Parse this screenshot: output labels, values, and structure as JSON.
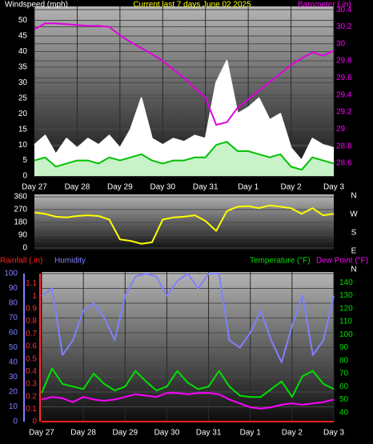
{
  "chart_data": [
    {
      "type": "line",
      "title": "Current last 7 days June 02 2025",
      "ylabel": "Windspeed (mph)",
      "y2label": "Barometer (.in)",
      "x": [
        0,
        0.25,
        0.5,
        0.75,
        1,
        1.25,
        1.5,
        1.75,
        2,
        2.25,
        2.5,
        2.75,
        3,
        3.25,
        3.5,
        3.75,
        4,
        4.25,
        4.5,
        4.75,
        5,
        5.25,
        5.5,
        5.75,
        6,
        6.25,
        6.5,
        6.75,
        7
      ],
      "xlim": [
        0,
        7
      ],
      "xticks": [
        {
          "value": 0,
          "label": "Day 27"
        },
        {
          "value": 1,
          "label": "Day 28"
        },
        {
          "value": 2,
          "label": "Day 29"
        },
        {
          "value": 3,
          "label": "Day 30"
        },
        {
          "value": 4,
          "label": "Day 31"
        },
        {
          "value": 5,
          "label": "Day 1"
        },
        {
          "value": 6,
          "label": "Day 2"
        },
        {
          "value": 7,
          "label": "Day 3"
        }
      ],
      "ylim": [
        0,
        54
      ],
      "yticks": [
        0,
        5,
        10,
        15,
        20,
        25,
        30,
        35,
        40,
        45,
        50
      ],
      "y2lim": [
        28.45,
        30.42
      ],
      "y2ticks": [
        28.6,
        28.8,
        29,
        29.2,
        29.4,
        29.6,
        29.8,
        30,
        30.2,
        30.4
      ],
      "grid": true,
      "series": [
        {
          "color": "#ffffff",
          "fill": "#ffffff",
          "values": [
            10,
            13,
            7,
            12,
            9,
            12,
            10,
            13,
            9,
            15,
            25,
            12,
            10,
            12,
            11,
            13,
            12,
            30,
            37,
            20,
            22,
            25,
            18,
            20,
            9,
            5,
            12,
            10,
            9
          ]
        },
        {
          "color": "#00c000",
          "fill": "#c8f2c8",
          "values": [
            5,
            6,
            3,
            4,
            5,
            5,
            4,
            6,
            5,
            6,
            7,
            5,
            4,
            5,
            5,
            6,
            6,
            10,
            11,
            8,
            8,
            7,
            6,
            7,
            3,
            2,
            6,
            5,
            4
          ]
        },
        {
          "color": "#e000e0",
          "axis": "y2",
          "values": [
            30.17,
            30.24,
            30.24,
            30.23,
            30.22,
            30.21,
            30.21,
            30.2,
            30.1,
            30.02,
            29.95,
            29.88,
            29.8,
            29.7,
            29.6,
            29.48,
            29.37,
            29.05,
            29.08,
            29.25,
            29.35,
            29.45,
            29.55,
            29.65,
            29.75,
            29.83,
            29.9,
            29.86,
            29.92
          ]
        }
      ]
    },
    {
      "type": "line",
      "x": [
        0,
        0.25,
        0.5,
        0.75,
        1,
        1.25,
        1.5,
        1.75,
        2,
        2.25,
        2.5,
        2.75,
        3,
        3.25,
        3.5,
        3.75,
        4,
        4.25,
        4.5,
        4.75,
        5,
        5.25,
        5.5,
        5.75,
        6,
        6.25,
        6.5,
        6.75,
        7
      ],
      "xlim": [
        0,
        7
      ],
      "ylim": [
        0,
        360
      ],
      "yticks": [
        0,
        90,
        180,
        270,
        360
      ],
      "y2lim": [
        0,
        360
      ],
      "y2ticks": [
        {
          "value": 360,
          "label": "N"
        },
        {
          "value": 270,
          "label": "W"
        },
        {
          "value": 180,
          "label": "S"
        },
        {
          "value": 90,
          "label": "E"
        },
        {
          "value": 0,
          "label": "N"
        }
      ],
      "grid": true,
      "series": [
        {
          "color": "#ffff00",
          "values": [
            250,
            240,
            220,
            215,
            225,
            230,
            225,
            200,
            60,
            50,
            30,
            40,
            200,
            215,
            220,
            230,
            190,
            120,
            260,
            290,
            295,
            280,
            300,
            290,
            280,
            240,
            280,
            230,
            240
          ]
        }
      ]
    },
    {
      "type": "line",
      "x": [
        0,
        0.25,
        0.5,
        0.75,
        1,
        1.25,
        1.5,
        1.75,
        2,
        2.25,
        2.5,
        2.75,
        3,
        3.25,
        3.5,
        3.75,
        4,
        4.25,
        4.5,
        4.75,
        5,
        5.25,
        5.5,
        5.75,
        6,
        6.25,
        6.5,
        6.75,
        7
      ],
      "xlim": [
        0,
        7
      ],
      "xticks": [
        {
          "value": 0,
          "label": "Day 27"
        },
        {
          "value": 1,
          "label": "Day 28"
        },
        {
          "value": 2,
          "label": "Day 29"
        },
        {
          "value": 3,
          "label": "Day 30"
        },
        {
          "value": 4,
          "label": "Day 31"
        },
        {
          "value": 5,
          "label": "Day 1"
        },
        {
          "value": 6,
          "label": "Day 2"
        },
        {
          "value": 7,
          "label": "Day 3"
        }
      ],
      "ylim": [
        0,
        100
      ],
      "yticks": [
        0,
        10,
        20,
        30,
        40,
        50,
        60,
        70,
        80,
        90,
        100
      ],
      "y2lim": [
        33,
        147
      ],
      "y2ticks": [
        40,
        50,
        60,
        70,
        80,
        90,
        100,
        110,
        120,
        130,
        140
      ],
      "y3lim": [
        0,
        1.18
      ],
      "y3ticks": [
        0,
        0.1,
        0.2,
        0.3,
        0.4,
        0.5,
        0.6,
        0.7,
        0.8,
        0.9,
        1,
        1.1
      ],
      "grid": true,
      "series": [
        {
          "name": "Rainfall (.in)",
          "color": "#ff2020",
          "axis": "y3",
          "values": [
            0,
            0,
            0,
            0,
            0,
            0,
            0,
            0,
            0,
            0,
            0,
            0,
            0,
            0,
            0,
            0,
            0,
            0,
            0,
            0,
            0,
            0,
            0,
            0,
            0,
            0,
            0,
            0,
            0
          ]
        },
        {
          "name": "Humidity",
          "color": "#8080ff",
          "values": [
            85,
            90,
            45,
            55,
            75,
            80,
            70,
            55,
            85,
            98,
            100,
            98,
            85,
            95,
            100,
            90,
            100,
            100,
            55,
            50,
            60,
            75,
            55,
            40,
            65,
            85,
            45,
            55,
            85
          ]
        },
        {
          "name": "Temperature (°F)",
          "color": "#00e000",
          "axis": "y2",
          "values": [
            55,
            74,
            62,
            60,
            58,
            70,
            62,
            57,
            60,
            72,
            64,
            57,
            60,
            72,
            63,
            58,
            60,
            72,
            60,
            53,
            52,
            52,
            58,
            64,
            52,
            68,
            72,
            62,
            58
          ]
        },
        {
          "name": "Dew Point (°F)",
          "color": "#ff00ff",
          "axis": "y2",
          "values": [
            50,
            52,
            51,
            48,
            52,
            50,
            49,
            50,
            52,
            54,
            53,
            52,
            55,
            55,
            54,
            55,
            55,
            54,
            50,
            47,
            44,
            43,
            44,
            46,
            47,
            46,
            47,
            48,
            50
          ]
        }
      ]
    }
  ]
}
